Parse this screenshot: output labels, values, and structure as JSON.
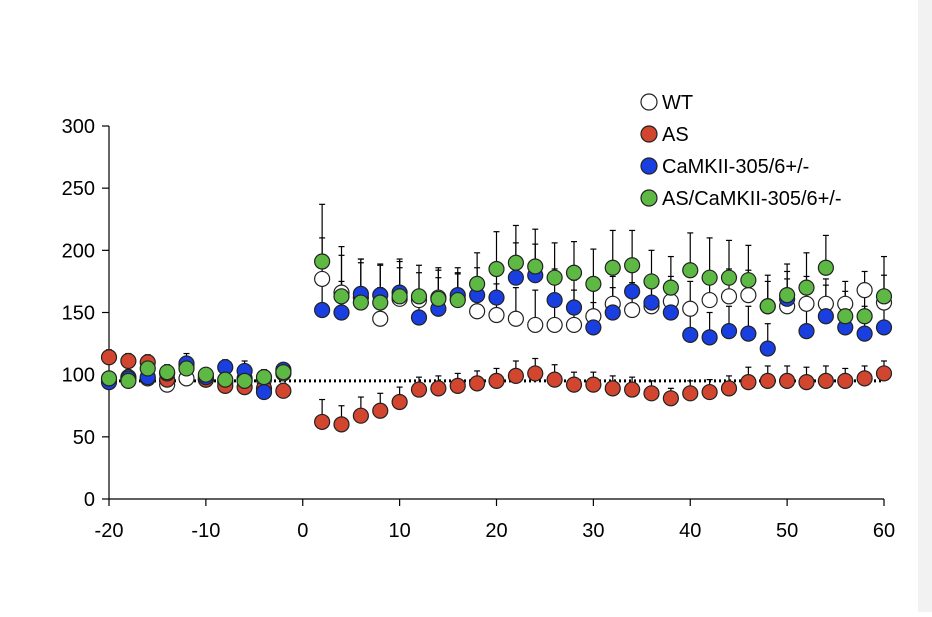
{
  "chart_data": {
    "type": "scatter",
    "title": "",
    "xlabel": "",
    "ylabel": "",
    "xlim": [
      -20,
      60
    ],
    "ylim": [
      0,
      300
    ],
    "x_ticks": [
      -20,
      -10,
      0,
      10,
      20,
      30,
      40,
      50,
      60
    ],
    "y_ticks": [
      0,
      50,
      100,
      150,
      200,
      250,
      300
    ],
    "x_tick_labels": [
      "-20",
      "-10",
      "0",
      "10",
      "20",
      "30",
      "40",
      "50",
      "60"
    ],
    "y_tick_labels": [
      "0",
      "50",
      "100",
      "150",
      "200",
      "250",
      "300"
    ],
    "grid": false,
    "legend_position": "top-right",
    "reference_line": {
      "y": 95,
      "style": "dotted"
    },
    "x": [
      -20,
      -18,
      -16,
      -14,
      -12,
      -10,
      -8,
      -6,
      -4,
      -2,
      2,
      4,
      6,
      8,
      10,
      12,
      14,
      16,
      18,
      20,
      22,
      24,
      26,
      28,
      30,
      32,
      34,
      36,
      38,
      40,
      42,
      44,
      46,
      48,
      50,
      52,
      54,
      56,
      58,
      60
    ],
    "series": [
      {
        "name": "WT",
        "color": "#ffffff",
        "values": [
          96,
          98,
          97,
          92,
          97,
          96,
          94,
          97,
          96,
          101,
          177,
          166,
          162,
          145,
          161,
          160,
          162,
          161,
          151,
          148,
          145,
          140,
          140,
          140,
          147,
          157,
          152,
          155,
          159,
          153,
          160,
          163,
          164,
          155,
          155,
          157,
          157,
          157,
          168,
          158
        ],
        "errors": [
          5,
          6,
          5,
          8,
          5,
          4,
          5,
          5,
          6,
          5,
          33,
          30,
          28,
          25,
          25,
          22,
          22,
          20,
          22,
          25,
          25,
          28,
          25,
          28,
          24,
          22,
          22,
          20,
          20,
          22,
          22,
          22,
          20,
          20,
          22,
          22,
          20,
          18,
          15,
          22
        ]
      },
      {
        "name": "AS",
        "color": "#d2452f",
        "values": [
          114,
          111,
          110,
          96,
          108,
          96,
          91,
          90,
          89,
          87,
          62,
          60,
          67,
          71,
          78,
          88,
          89,
          91,
          93,
          95,
          99,
          101,
          96,
          92,
          92,
          89,
          88,
          85,
          81,
          85,
          86,
          89,
          94,
          95,
          95,
          94,
          95,
          95,
          97,
          101
        ],
        "errors": [
          6,
          6,
          6,
          6,
          6,
          5,
          5,
          6,
          6,
          6,
          18,
          15,
          15,
          14,
          12,
          10,
          10,
          10,
          10,
          10,
          12,
          12,
          12,
          10,
          10,
          10,
          10,
          10,
          8,
          10,
          10,
          10,
          12,
          12,
          12,
          12,
          12,
          10,
          10,
          10
        ]
      },
      {
        "name": "CaMKII-305/6+/-",
        "color": "#1a3fe0",
        "values": [
          94,
          97,
          98,
          101,
          109,
          98,
          106,
          103,
          86,
          104,
          152,
          150,
          165,
          164,
          166,
          146,
          153,
          164,
          164,
          162,
          178,
          180,
          160,
          154,
          138,
          150,
          167,
          158,
          150,
          132,
          130,
          135,
          133,
          121,
          161,
          135,
          147,
          138,
          133,
          138
        ],
        "errors": [
          5,
          6,
          5,
          5,
          8,
          5,
          6,
          8,
          10,
          5,
          28,
          25,
          28,
          25,
          25,
          22,
          25,
          22,
          22,
          25,
          28,
          25,
          25,
          22,
          20,
          20,
          25,
          22,
          22,
          22,
          20,
          20,
          22,
          20,
          22,
          22,
          25,
          22,
          22,
          25
        ]
      },
      {
        "name": "AS/CaMKII-305/6+/-",
        "color": "#5db844",
        "values": [
          97,
          95,
          105,
          102,
          105,
          100,
          96,
          95,
          98,
          102,
          191,
          163,
          158,
          158,
          163,
          163,
          161,
          160,
          173,
          185,
          190,
          187,
          178,
          182,
          173,
          186,
          188,
          175,
          170,
          184,
          178,
          178,
          176,
          155,
          164,
          170,
          186,
          147,
          147,
          163
        ],
        "errors": [
          5,
          5,
          6,
          6,
          5,
          5,
          5,
          5,
          6,
          6,
          46,
          40,
          35,
          30,
          30,
          25,
          25,
          22,
          25,
          30,
          30,
          30,
          28,
          25,
          28,
          30,
          28,
          25,
          25,
          30,
          32,
          30,
          28,
          25,
          25,
          28,
          26,
          20,
          20,
          32
        ]
      }
    ]
  }
}
